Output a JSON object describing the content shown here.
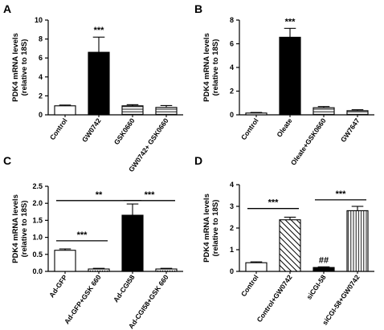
{
  "chart_data": [
    {
      "type": "bar",
      "panel": "A",
      "ylabel_line1": "PDK4 mRNA levels",
      "ylabel_line2": "(relative to 18S)",
      "ylim": [
        0,
        10
      ],
      "yticks": [
        0,
        2,
        4,
        6,
        8,
        10
      ],
      "categories": [
        "Control",
        "GW0742",
        "GSK0660",
        "GW0742+ GSK0660"
      ],
      "values": [
        0.95,
        6.6,
        0.95,
        0.78
      ],
      "errors": [
        0.08,
        1.6,
        0.12,
        0.2
      ],
      "fills": [
        "white",
        "black",
        "hlines",
        "hlines"
      ],
      "bar_labels": [
        "",
        "***",
        "",
        ""
      ],
      "brackets": []
    },
    {
      "type": "bar",
      "panel": "B",
      "ylabel_line1": "PDK4 mRNA levels",
      "ylabel_line2": "(relative to 18S)",
      "ylim": [
        0,
        8
      ],
      "yticks": [
        0,
        2,
        4,
        6,
        8
      ],
      "categories": [
        "Control",
        "Oleate",
        "Oleate+GSK0660",
        "GW7647"
      ],
      "values": [
        0.15,
        6.55,
        0.6,
        0.35
      ],
      "errors": [
        0.05,
        0.75,
        0.1,
        0.08
      ],
      "fills": [
        "white",
        "black",
        "hlines",
        "hlines"
      ],
      "bar_labels": [
        "",
        "***",
        "",
        ""
      ],
      "brackets": []
    },
    {
      "type": "bar",
      "panel": "C",
      "ylabel_line1": "PDK4 mRNA levels",
      "ylabel_line2": "(relative to 18S)",
      "ylim": [
        0,
        2.5
      ],
      "yticks": [
        0.0,
        0.5,
        1.0,
        1.5,
        2.0,
        2.5
      ],
      "yticks_text": [
        "0.0",
        "0.5",
        "1.0",
        "1.5",
        "2.0",
        "2.5"
      ],
      "categories": [
        "Ad-GFP",
        "Ad-GFP+GSK 660",
        "Ad-CGI58",
        "Ad-CGI58+GSK 660"
      ],
      "values": [
        0.62,
        0.07,
        1.65,
        0.07
      ],
      "errors": [
        0.04,
        0.02,
        0.33,
        0.02
      ],
      "fills": [
        "white",
        "dots",
        "black",
        "dots"
      ],
      "bar_labels": [
        "",
        "",
        "",
        ""
      ],
      "brackets": [
        {
          "from": 0,
          "to": 2,
          "y": 2.08,
          "label": "**"
        },
        {
          "from": 0,
          "to": 1,
          "y": 0.9,
          "label": "***"
        },
        {
          "from": 2,
          "to": 3,
          "y": 2.08,
          "label": "***"
        }
      ]
    },
    {
      "type": "bar",
      "panel": "D",
      "ylabel_line1": "PDK4 mRNA levels",
      "ylabel_line2": "(relative to 18S)",
      "ylim": [
        0,
        4
      ],
      "yticks": [
        0,
        1,
        2,
        3,
        4
      ],
      "categories": [
        "Control",
        "Control+GW0742",
        "siCGI-58",
        "siCGI-58+GW0742"
      ],
      "values": [
        0.4,
        2.38,
        0.18,
        2.8
      ],
      "errors": [
        0.04,
        0.12,
        0.03,
        0.2
      ],
      "fills": [
        "white",
        "diag",
        "black",
        "vlines"
      ],
      "bar_labels": [
        "",
        "",
        "##",
        ""
      ],
      "brackets": [
        {
          "from": 0,
          "to": 1,
          "y": 2.9,
          "label": "***"
        },
        {
          "from": 2,
          "to": 3,
          "y": 3.3,
          "label": "***"
        }
      ]
    }
  ]
}
